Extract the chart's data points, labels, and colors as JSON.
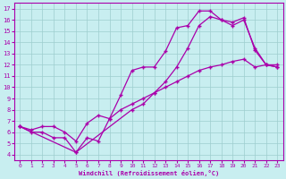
{
  "xlabel": "Windchill (Refroidissement éolien,°C)",
  "xlim": [
    -0.5,
    23.5
  ],
  "ylim": [
    3.5,
    17.5
  ],
  "xticks": [
    0,
    1,
    2,
    3,
    4,
    5,
    6,
    7,
    8,
    9,
    10,
    11,
    12,
    13,
    14,
    15,
    16,
    17,
    18,
    19,
    20,
    21,
    22,
    23
  ],
  "yticks": [
    4,
    5,
    6,
    7,
    8,
    9,
    10,
    11,
    12,
    13,
    14,
    15,
    16,
    17
  ],
  "background_color": "#c8eef0",
  "line_color": "#aa00aa",
  "grid_color": "#9ecece",
  "curve1_x": [
    0,
    1,
    2,
    3,
    4,
    5,
    6,
    7,
    8,
    9,
    10,
    11,
    12,
    13,
    14,
    15,
    16,
    17,
    18,
    19,
    20,
    21,
    22,
    23
  ],
  "curve1_y": [
    6.5,
    6.0,
    6.0,
    5.5,
    5.5,
    4.2,
    5.5,
    5.2,
    7.2,
    9.3,
    11.5,
    11.8,
    11.8,
    13.2,
    15.3,
    15.5,
    16.8,
    16.8,
    16.0,
    15.8,
    16.2,
    13.3,
    12.0,
    11.8
  ],
  "curve2_x": [
    0,
    5,
    10,
    11,
    12,
    13,
    14,
    15,
    16,
    17,
    18,
    19,
    20,
    21,
    22,
    23
  ],
  "curve2_y": [
    6.5,
    4.2,
    8.0,
    8.5,
    9.5,
    10.5,
    11.8,
    13.5,
    15.5,
    16.3,
    16.0,
    15.5,
    16.0,
    13.5,
    12.0,
    12.0
  ],
  "curve3_x": [
    0,
    1,
    2,
    3,
    4,
    5,
    6,
    7,
    8,
    9,
    10,
    11,
    12,
    13,
    14,
    15,
    16,
    17,
    18,
    19,
    20,
    21,
    22,
    23
  ],
  "curve3_y": [
    6.5,
    6.2,
    6.5,
    6.5,
    6.0,
    5.2,
    6.8,
    7.5,
    7.2,
    8.0,
    8.5,
    9.0,
    9.5,
    10.0,
    10.5,
    11.0,
    11.5,
    11.8,
    12.0,
    12.3,
    12.5,
    11.8,
    12.0,
    11.8
  ]
}
